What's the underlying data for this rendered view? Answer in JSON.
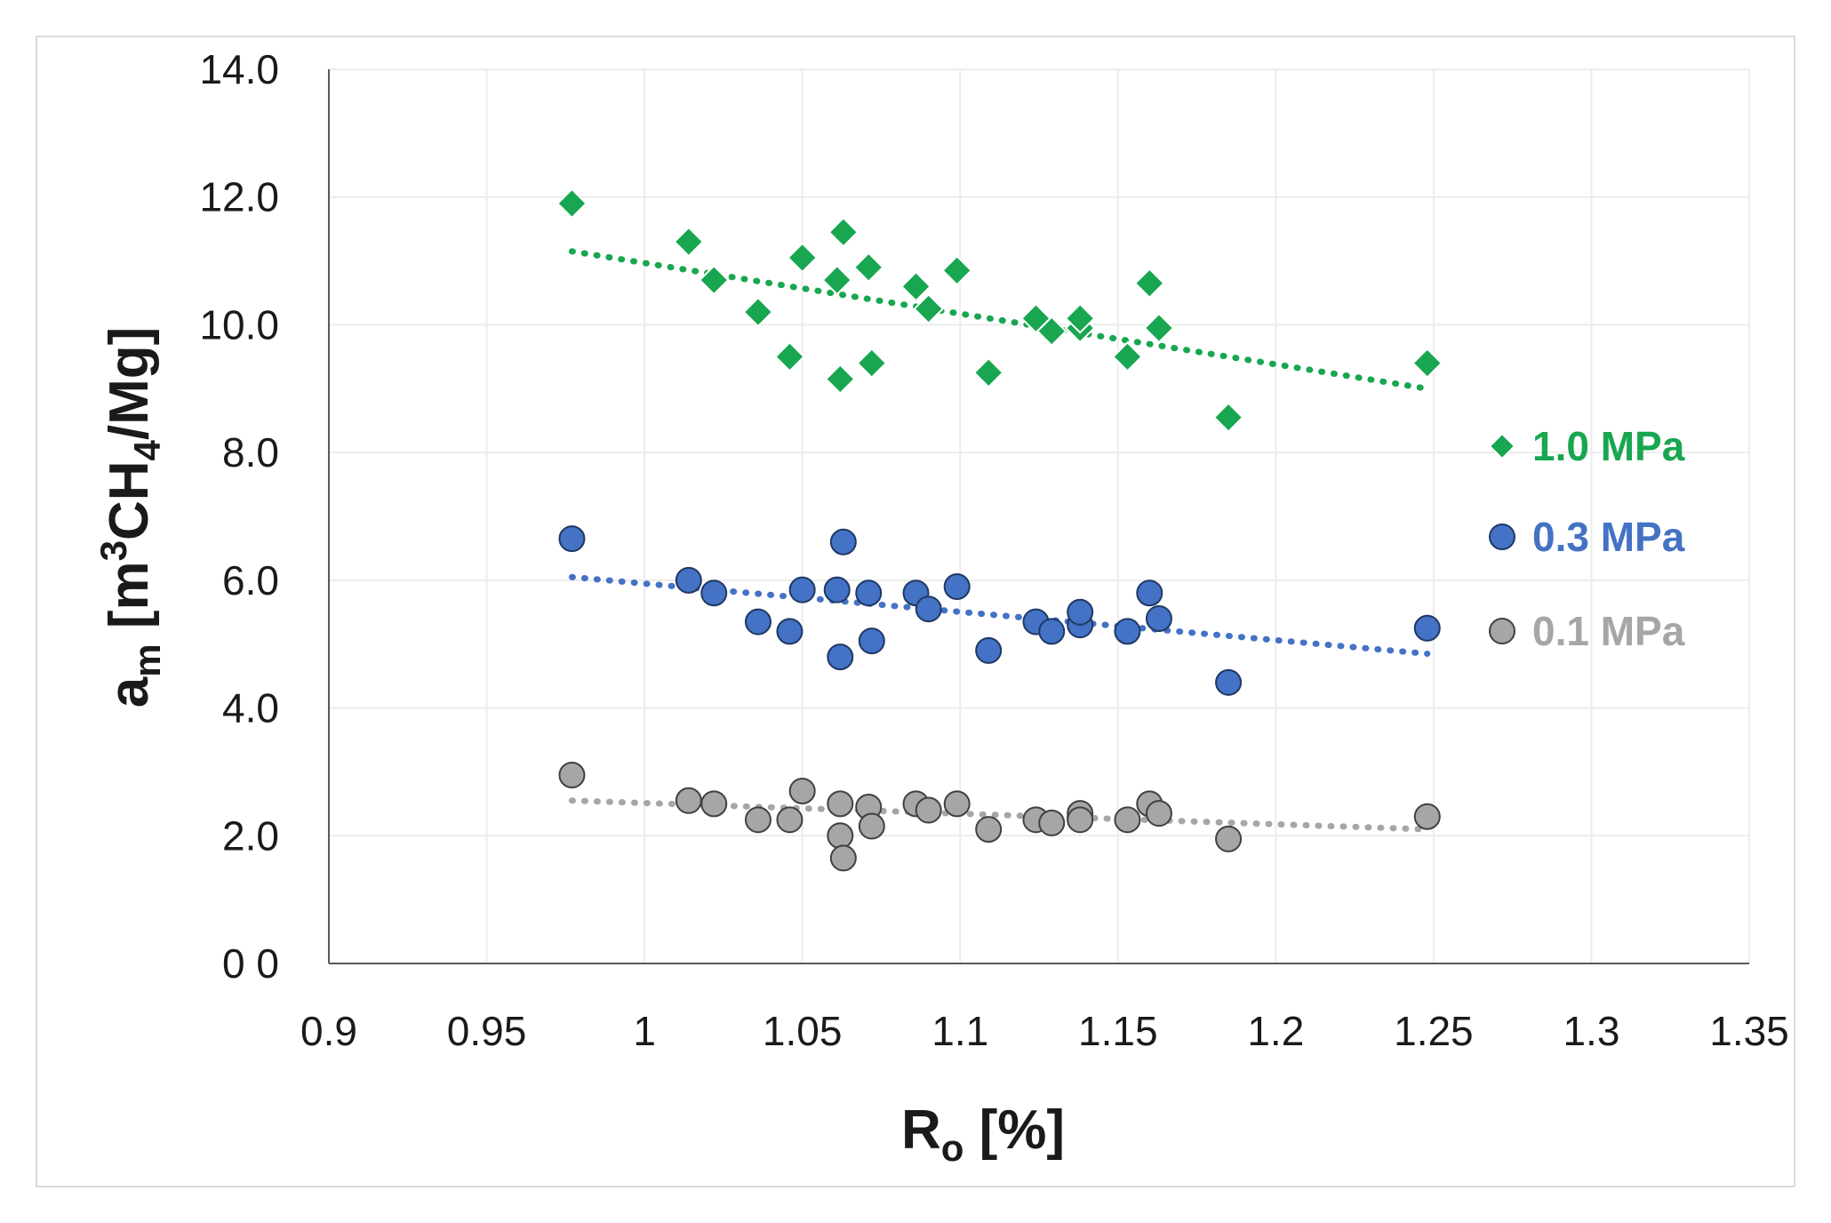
{
  "chart_data": {
    "type": "scatter",
    "title": "",
    "xlabel": {
      "main": "R",
      "sub": "o",
      "rest": " [%]"
    },
    "ylabel": {
      "main": "a",
      "sub": "m",
      "open": " [m",
      "sup": "3",
      "mid": "CH",
      "sub2": "4",
      "close": "/Mg]"
    },
    "xlim": [
      0.9,
      1.35
    ],
    "ylim": [
      0,
      14
    ],
    "x_ticks": [
      0.9,
      0.95,
      1.0,
      1.05,
      1.1,
      1.15,
      1.2,
      1.25,
      1.3,
      1.35
    ],
    "x_tick_labels": [
      "0.9",
      "0.95",
      "1",
      "1.05",
      "1.1",
      "1.15",
      "1.2",
      "1.25",
      "1.3",
      "1.35"
    ],
    "y_ticks": [
      0,
      2,
      4,
      6,
      8,
      10,
      12,
      14
    ],
    "y_tick_labels": [
      "0 0",
      "2.0",
      "4.0",
      "6.0",
      "8.0",
      "10.0",
      "12.0",
      "14.0"
    ],
    "grid": true,
    "legend_position": "right",
    "series": [
      {
        "name": "1.0 MPa",
        "marker": "diamond",
        "color": "#18a650",
        "trend": [
          [
            0.977,
            11.15
          ],
          [
            1.248,
            9.0
          ]
        ],
        "points": [
          [
            0.977,
            11.9
          ],
          [
            1.014,
            11.3
          ],
          [
            1.022,
            10.7
          ],
          [
            1.036,
            10.2
          ],
          [
            1.046,
            9.5
          ],
          [
            1.05,
            11.05
          ],
          [
            1.061,
            10.7
          ],
          [
            1.062,
            9.15
          ],
          [
            1.063,
            11.45
          ],
          [
            1.071,
            10.9
          ],
          [
            1.072,
            9.4
          ],
          [
            1.086,
            10.6
          ],
          [
            1.09,
            10.25
          ],
          [
            1.099,
            10.85
          ],
          [
            1.109,
            9.25
          ],
          [
            1.124,
            10.1
          ],
          [
            1.129,
            9.9
          ],
          [
            1.138,
            9.95
          ],
          [
            1.138,
            10.1
          ],
          [
            1.153,
            9.5
          ],
          [
            1.16,
            10.65
          ],
          [
            1.163,
            9.95
          ],
          [
            1.185,
            8.55
          ],
          [
            1.248,
            9.4
          ]
        ]
      },
      {
        "name": "0.3 MPa",
        "marker": "circle",
        "color": "#4472c4",
        "trend": [
          [
            0.977,
            6.05
          ],
          [
            1.248,
            4.85
          ]
        ],
        "points": [
          [
            0.977,
            6.65
          ],
          [
            1.014,
            6.0
          ],
          [
            1.022,
            5.8
          ],
          [
            1.036,
            5.35
          ],
          [
            1.046,
            5.2
          ],
          [
            1.05,
            5.85
          ],
          [
            1.061,
            5.85
          ],
          [
            1.062,
            4.8
          ],
          [
            1.063,
            6.6
          ],
          [
            1.071,
            5.8
          ],
          [
            1.072,
            5.05
          ],
          [
            1.086,
            5.8
          ],
          [
            1.09,
            5.55
          ],
          [
            1.099,
            5.9
          ],
          [
            1.109,
            4.9
          ],
          [
            1.124,
            5.35
          ],
          [
            1.129,
            5.2
          ],
          [
            1.138,
            5.3
          ],
          [
            1.138,
            5.5
          ],
          [
            1.153,
            5.2
          ],
          [
            1.16,
            5.8
          ],
          [
            1.163,
            5.4
          ],
          [
            1.185,
            4.4
          ],
          [
            1.248,
            5.25
          ]
        ]
      },
      {
        "name": "0.1 MPa",
        "marker": "circle",
        "color": "#a6a6a6",
        "trend": [
          [
            0.977,
            2.55
          ],
          [
            1.248,
            2.1
          ]
        ],
        "points": [
          [
            0.977,
            2.95
          ],
          [
            1.014,
            2.55
          ],
          [
            1.022,
            2.5
          ],
          [
            1.036,
            2.25
          ],
          [
            1.046,
            2.25
          ],
          [
            1.05,
            2.7
          ],
          [
            1.062,
            2.5
          ],
          [
            1.062,
            2.0
          ],
          [
            1.063,
            1.65
          ],
          [
            1.071,
            2.45
          ],
          [
            1.072,
            2.15
          ],
          [
            1.086,
            2.5
          ],
          [
            1.09,
            2.4
          ],
          [
            1.099,
            2.5
          ],
          [
            1.109,
            2.1
          ],
          [
            1.124,
            2.25
          ],
          [
            1.129,
            2.2
          ],
          [
            1.138,
            2.35
          ],
          [
            1.138,
            2.25
          ],
          [
            1.153,
            2.25
          ],
          [
            1.16,
            2.5
          ],
          [
            1.163,
            2.35
          ],
          [
            1.185,
            1.95
          ],
          [
            1.248,
            2.3
          ]
        ]
      }
    ]
  }
}
